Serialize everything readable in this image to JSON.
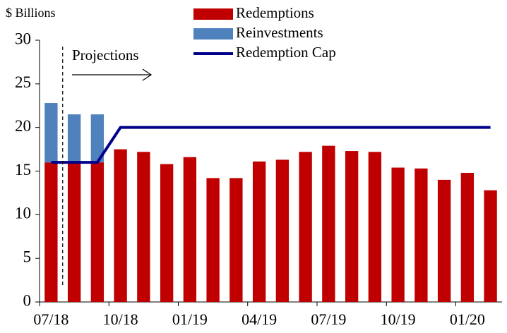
{
  "chart_data": {
    "type": "bar",
    "stacked": true,
    "y_label": "$ Billions",
    "annotation": "Projections",
    "categories": [
      "07/18",
      null,
      null,
      "10/18",
      null,
      null,
      "01/19",
      null,
      null,
      "04/19",
      null,
      null,
      "07/19",
      null,
      null,
      "10/19",
      null,
      null,
      "01/20",
      null
    ],
    "series": [
      {
        "name": "Redemptions",
        "color": "#c00000",
        "kind": "bar",
        "values": [
          16.0,
          16.0,
          16.0,
          17.5,
          17.2,
          15.8,
          16.6,
          14.2,
          14.2,
          16.1,
          16.3,
          17.2,
          17.9,
          17.3,
          17.2,
          15.4,
          15.3,
          14.0,
          14.8,
          12.8
        ]
      },
      {
        "name": "Reinvestments",
        "color": "#4f81bd",
        "kind": "bar",
        "values": [
          6.8,
          5.5,
          5.5,
          null,
          null,
          null,
          null,
          null,
          null,
          null,
          null,
          null,
          null,
          null,
          null,
          null,
          null,
          null,
          null,
          null
        ]
      },
      {
        "name": "Redemption Cap",
        "color": "#00008b",
        "kind": "line",
        "values": [
          16,
          16,
          16,
          20,
          20,
          20,
          20,
          20,
          20,
          20,
          20,
          20,
          20,
          20,
          20,
          20,
          20,
          20,
          20,
          20
        ]
      }
    ],
    "ylim": [
      0,
      30
    ],
    "yticks": [
      0,
      5,
      10,
      15,
      20,
      25,
      30
    ],
    "grid": false
  }
}
